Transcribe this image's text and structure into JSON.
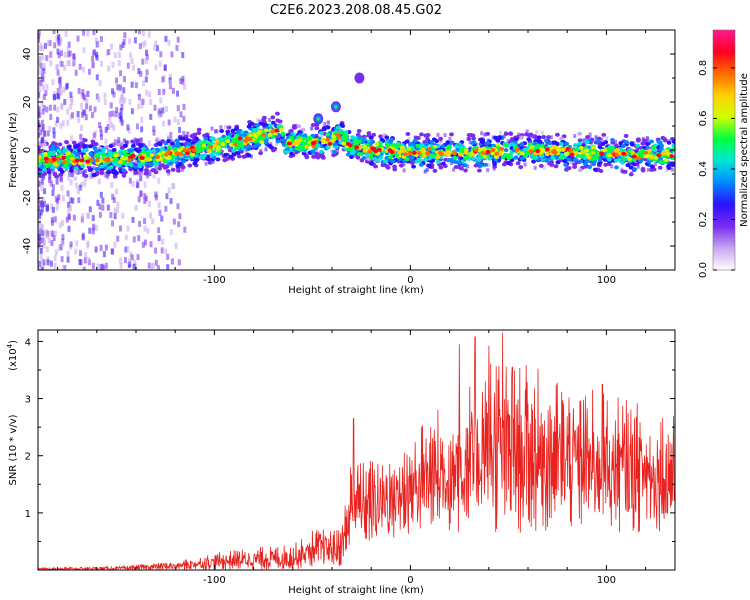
{
  "figure_title": "C2E6.2023.208.08.45.G02",
  "colors": {
    "snr_line": "#e8231f",
    "colormap": [
      "#ffffff",
      "#c9a6f2",
      "#7a2cf0",
      "#2a10ff",
      "#0088ff",
      "#00e6d8",
      "#00ff40",
      "#cfff00",
      "#ffd000",
      "#ff6a00",
      "#ff0020",
      "#ff1a90"
    ]
  },
  "chart_data": [
    {
      "type": "heatmap",
      "xlabel": "Height of straight line (km)",
      "ylabel": "Frequency (Hz)",
      "xlim": [
        -190,
        135
      ],
      "ylim": [
        -50,
        50
      ],
      "xticks": [
        -100,
        0,
        100
      ],
      "yticks": [
        -40,
        -20,
        0,
        20,
        40
      ],
      "grid": false,
      "colorbar": {
        "label": "Normalized spectral amplitude",
        "range": [
          0,
          0.95
        ],
        "ticks": [
          "0.0",
          "0.2",
          "0.4",
          "0.6",
          "0.8"
        ]
      },
      "ridge": {
        "x": [
          -190,
          -160,
          -130,
          -110,
          -90,
          -75,
          -66,
          -64,
          -50,
          -40,
          -36,
          -30,
          -20,
          0,
          30,
          60,
          90,
          110,
          135
        ],
        "y": [
          -4,
          -4,
          -3,
          0,
          3,
          6,
          8,
          3,
          3,
          4,
          6,
          2,
          0,
          -1,
          -1,
          0,
          -1,
          -2,
          -2
        ]
      },
      "blobs": [
        {
          "x": -47,
          "y": 13
        },
        {
          "x": -38,
          "y": 18
        },
        {
          "x": -26,
          "y": 30
        }
      ]
    },
    {
      "type": "line",
      "xlabel": "Height of straight line (km)",
      "ylabel": "SNR (10 * v/v)",
      "ylabel_multiplier": "(x10",
      "ylabel_exponent": "4",
      "ylabel_suffix": ")",
      "xlim": [
        -190,
        135
      ],
      "ylim": [
        0,
        4.2
      ],
      "xticks": [
        -100,
        0,
        100
      ],
      "yticks": [
        1,
        2,
        3,
        4
      ],
      "grid": false,
      "envelope": {
        "x": [
          -190,
          -150,
          -120,
          -100,
          -80,
          -60,
          -50,
          -45,
          -38,
          -35,
          -32,
          -29,
          -25,
          -10,
          0,
          10,
          20,
          30,
          40,
          50,
          60,
          80,
          100,
          120,
          135
        ],
        "low": [
          0,
          0,
          0,
          0,
          0,
          0,
          0.02,
          0.05,
          0.05,
          0.05,
          0.1,
          0.25,
          0.4,
          0.5,
          0.55,
          0.6,
          0.6,
          0.6,
          0.6,
          0.6,
          0.65,
          0.65,
          0.65,
          0.65,
          0.65
        ],
        "high": [
          0.04,
          0.06,
          0.15,
          0.3,
          0.4,
          0.45,
          0.7,
          0.75,
          0.7,
          0.85,
          1.5,
          2.4,
          1.9,
          2.1,
          2.4,
          2.8,
          3.0,
          3.3,
          4.1,
          3.6,
          3.6,
          3.3,
          3.1,
          2.9,
          2.8
        ]
      },
      "spikes": [
        {
          "x": -29,
          "y": 2.65
        },
        {
          "x": 25,
          "y": 3.95
        },
        {
          "x": 33,
          "y": 4.08
        },
        {
          "x": 47,
          "y": 4.15
        },
        {
          "x": 52,
          "y": 3.55
        },
        {
          "x": 98,
          "y": 3.25
        }
      ]
    }
  ]
}
